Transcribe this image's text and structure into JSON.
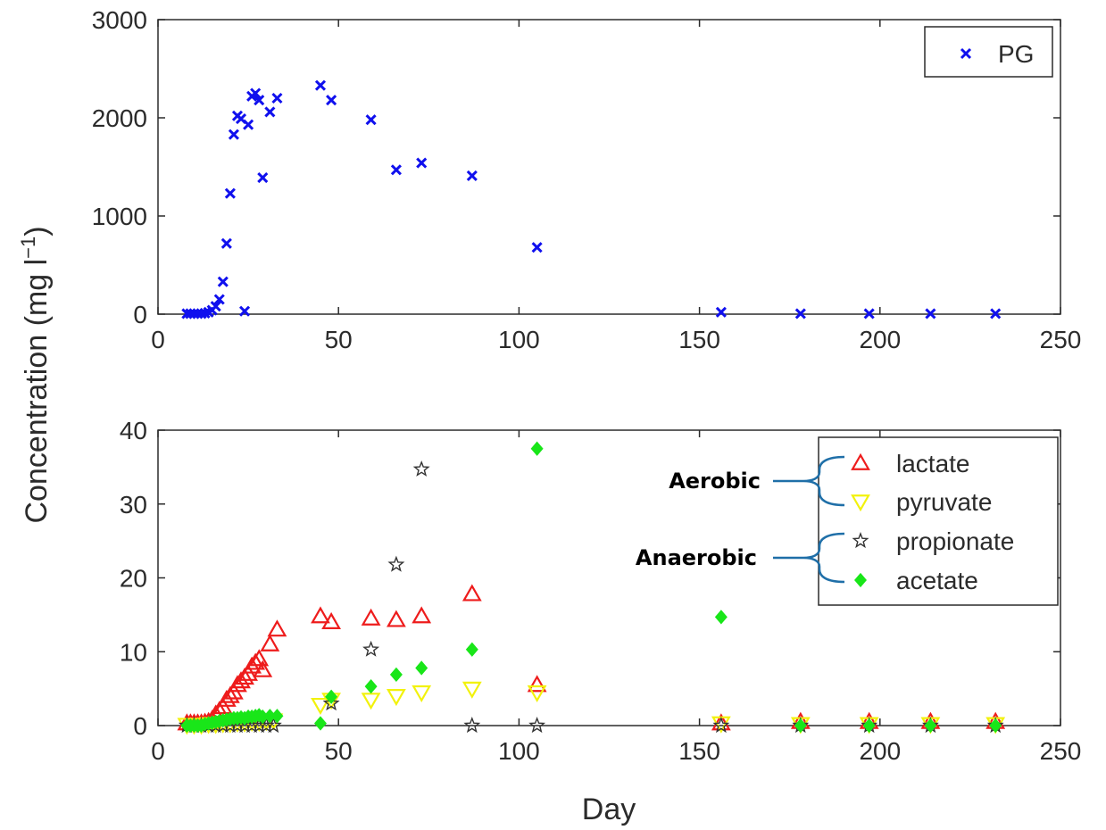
{
  "colors": {
    "axis": "#2b2b2b",
    "pg": "#1010ee",
    "lactate": "#ee1c1c",
    "pyruvate": "#f2f20c",
    "propionate": "#333333",
    "acetate": "#19e619",
    "brace": "#1f6fa8"
  },
  "ylabel": "Concentration (mg l",
  "ylabel_sup": "−1",
  "ylabel_close": ")",
  "xlabel": "Day",
  "chart_data": [
    {
      "type": "scatter",
      "xlim": [
        0,
        250
      ],
      "ylim": [
        0,
        3000
      ],
      "xticks": [
        "0",
        "50",
        "100",
        "150",
        "200",
        "250"
      ],
      "yticks": [
        "0",
        "1000",
        "2000",
        "3000"
      ],
      "legend_position": "top-right",
      "series": [
        {
          "name": "PG",
          "marker": "x",
          "points": [
            [
              8,
              5
            ],
            [
              9,
              5
            ],
            [
              10,
              5
            ],
            [
              11,
              5
            ],
            [
              12,
              5
            ],
            [
              13,
              10
            ],
            [
              14,
              20
            ],
            [
              15,
              40
            ],
            [
              16,
              80
            ],
            [
              17,
              150
            ],
            [
              18,
              330
            ],
            [
              19,
              720
            ],
            [
              20,
              1230
            ],
            [
              21,
              1830
            ],
            [
              22,
              2020
            ],
            [
              23,
              1990
            ],
            [
              24,
              30
            ],
            [
              25,
              1930
            ],
            [
              26,
              2220
            ],
            [
              27,
              2250
            ],
            [
              28,
              2180
            ],
            [
              29,
              1390
            ],
            [
              31,
              2060
            ],
            [
              33,
              2200
            ],
            [
              45,
              2330
            ],
            [
              48,
              2180
            ],
            [
              59,
              1980
            ],
            [
              66,
              1470
            ],
            [
              73,
              1540
            ],
            [
              87,
              1410
            ],
            [
              105,
              680
            ],
            [
              156,
              20
            ],
            [
              178,
              5
            ],
            [
              197,
              5
            ],
            [
              214,
              5
            ],
            [
              232,
              5
            ]
          ]
        }
      ]
    },
    {
      "type": "scatter",
      "xlim": [
        0,
        250
      ],
      "ylim": [
        0,
        40
      ],
      "xticks": [
        "0",
        "50",
        "100",
        "150",
        "200",
        "250"
      ],
      "yticks": [
        "0",
        "10",
        "20",
        "30",
        "40"
      ],
      "legend_position": "top-right",
      "series": [
        {
          "name": "lactate",
          "marker": "triangle-up",
          "points": [
            [
              8,
              0.3
            ],
            [
              9,
              0.3
            ],
            [
              10,
              0.3
            ],
            [
              11,
              0.3
            ],
            [
              12,
              0.3
            ],
            [
              13,
              0.4
            ],
            [
              14,
              0.5
            ],
            [
              15,
              0.8
            ],
            [
              16,
              1.5
            ],
            [
              17,
              2.0
            ],
            [
              18,
              2.5
            ],
            [
              19,
              3.5
            ],
            [
              20,
              4.0
            ],
            [
              21,
              4.5
            ],
            [
              22,
              5.5
            ],
            [
              23,
              6.0
            ],
            [
              24,
              6.5
            ],
            [
              25,
              7.0
            ],
            [
              26,
              8.0
            ],
            [
              27,
              8.5
            ],
            [
              28,
              9.0
            ],
            [
              29,
              7.5
            ],
            [
              31,
              11.0
            ],
            [
              33,
              13.0
            ],
            [
              45,
              14.8
            ],
            [
              48,
              14.0
            ],
            [
              59,
              14.5
            ],
            [
              66,
              14.3
            ],
            [
              73,
              14.8
            ],
            [
              87,
              17.8
            ],
            [
              105,
              5.5
            ],
            [
              156,
              0.3
            ],
            [
              178,
              0.5
            ],
            [
              197,
              0.5
            ],
            [
              214,
              0.5
            ],
            [
              232,
              0.5
            ]
          ]
        },
        {
          "name": "pyruvate",
          "marker": "triangle-down",
          "points": [
            [
              8,
              0.1
            ],
            [
              10,
              0.1
            ],
            [
              12,
              0.1
            ],
            [
              14,
              0.2
            ],
            [
              16,
              0.2
            ],
            [
              18,
              0.3
            ],
            [
              20,
              0.3
            ],
            [
              22,
              0.4
            ],
            [
              24,
              0.4
            ],
            [
              26,
              0.5
            ],
            [
              28,
              0.5
            ],
            [
              30,
              0.6
            ],
            [
              32,
              0.7
            ],
            [
              45,
              2.8
            ],
            [
              48,
              3.5
            ],
            [
              59,
              3.5
            ],
            [
              66,
              4.0
            ],
            [
              73,
              4.5
            ],
            [
              87,
              5.0
            ],
            [
              105,
              4.5
            ],
            [
              156,
              0.3
            ],
            [
              178,
              0.2
            ],
            [
              197,
              0.2
            ],
            [
              214,
              0.2
            ],
            [
              232,
              0.2
            ]
          ]
        },
        {
          "name": "propionate",
          "marker": "star",
          "points": [
            [
              8,
              0
            ],
            [
              10,
              0
            ],
            [
              12,
              0
            ],
            [
              14,
              0
            ],
            [
              16,
              0
            ],
            [
              18,
              0
            ],
            [
              20,
              0
            ],
            [
              22,
              0
            ],
            [
              24,
              0
            ],
            [
              26,
              0
            ],
            [
              28,
              0
            ],
            [
              30,
              0
            ],
            [
              32,
              0
            ],
            [
              48,
              3.0
            ],
            [
              59,
              10.3
            ],
            [
              66,
              21.8
            ],
            [
              73,
              34.7
            ],
            [
              87,
              0
            ],
            [
              105,
              0
            ],
            [
              156,
              0
            ],
            [
              178,
              0
            ],
            [
              197,
              0
            ],
            [
              214,
              0
            ],
            [
              232,
              0
            ]
          ]
        },
        {
          "name": "acetate",
          "marker": "diamond",
          "points": [
            [
              8,
              0
            ],
            [
              9,
              0
            ],
            [
              10,
              0
            ],
            [
              11,
              0
            ],
            [
              12,
              0
            ],
            [
              13,
              0.2
            ],
            [
              14,
              0.3
            ],
            [
              15,
              0.4
            ],
            [
              16,
              0.5
            ],
            [
              17,
              0.6
            ],
            [
              18,
              0.7
            ],
            [
              19,
              0.8
            ],
            [
              20,
              0.9
            ],
            [
              21,
              1.0
            ],
            [
              22,
              1.0
            ],
            [
              23,
              1.1
            ],
            [
              24,
              1.0
            ],
            [
              25,
              1.2
            ],
            [
              26,
              1.2
            ],
            [
              27,
              1.3
            ],
            [
              28,
              1.4
            ],
            [
              29,
              1.2
            ],
            [
              31,
              1.3
            ],
            [
              33,
              1.3
            ],
            [
              45,
              0.3
            ],
            [
              48,
              3.9
            ],
            [
              59,
              5.3
            ],
            [
              66,
              6.9
            ],
            [
              73,
              7.8
            ],
            [
              87,
              10.3
            ],
            [
              105,
              37.5
            ],
            [
              156,
              14.7
            ],
            [
              178,
              0
            ],
            [
              197,
              0
            ],
            [
              214,
              0
            ],
            [
              232,
              0
            ]
          ]
        }
      ],
      "annotations": [
        {
          "text": "Aerobic",
          "groups": [
            "lactate",
            "pyruvate"
          ]
        },
        {
          "text": "Anaerobic",
          "groups": [
            "propionate",
            "acetate"
          ]
        }
      ]
    }
  ]
}
